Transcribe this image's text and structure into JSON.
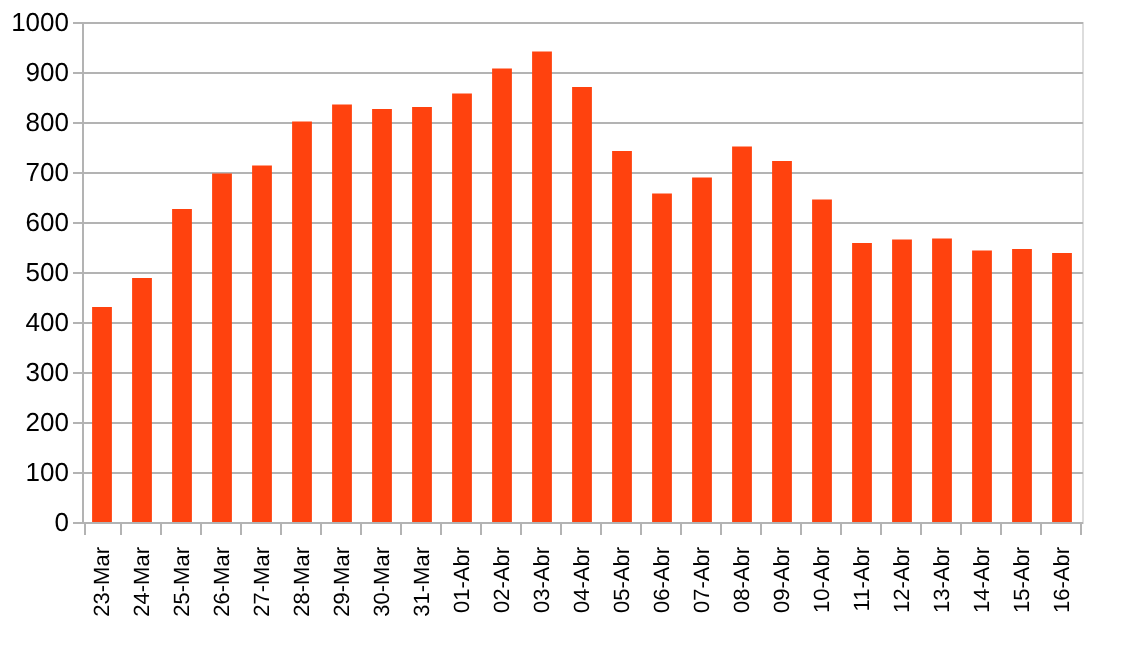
{
  "chart_data": {
    "type": "bar",
    "categories": [
      "23-Mar",
      "24-Mar",
      "25-Mar",
      "26-Mar",
      "27-Mar",
      "28-Mar",
      "29-Mar",
      "30-Mar",
      "31-Mar",
      "01-Abr",
      "02-Abr",
      "03-Abr",
      "04-Abr",
      "05-Abr",
      "06-Abr",
      "07-Abr",
      "08-Abr",
      "09-Abr",
      "10-Abr",
      "11-Abr",
      "12-Abr",
      "13-Abr",
      "14-Abr",
      "15-Abr",
      "16-Abr"
    ],
    "values": [
      430,
      488,
      626,
      697,
      713,
      801,
      835,
      826,
      830,
      857,
      907,
      941,
      870,
      742,
      657,
      689,
      751,
      722,
      645,
      558,
      565,
      567,
      543,
      546,
      538
    ],
    "color": "#ff420e",
    "ylim": [
      0,
      1000
    ],
    "yticks": [
      0,
      100,
      200,
      300,
      400,
      500,
      600,
      700,
      800,
      900,
      1000
    ],
    "grid": "y"
  }
}
